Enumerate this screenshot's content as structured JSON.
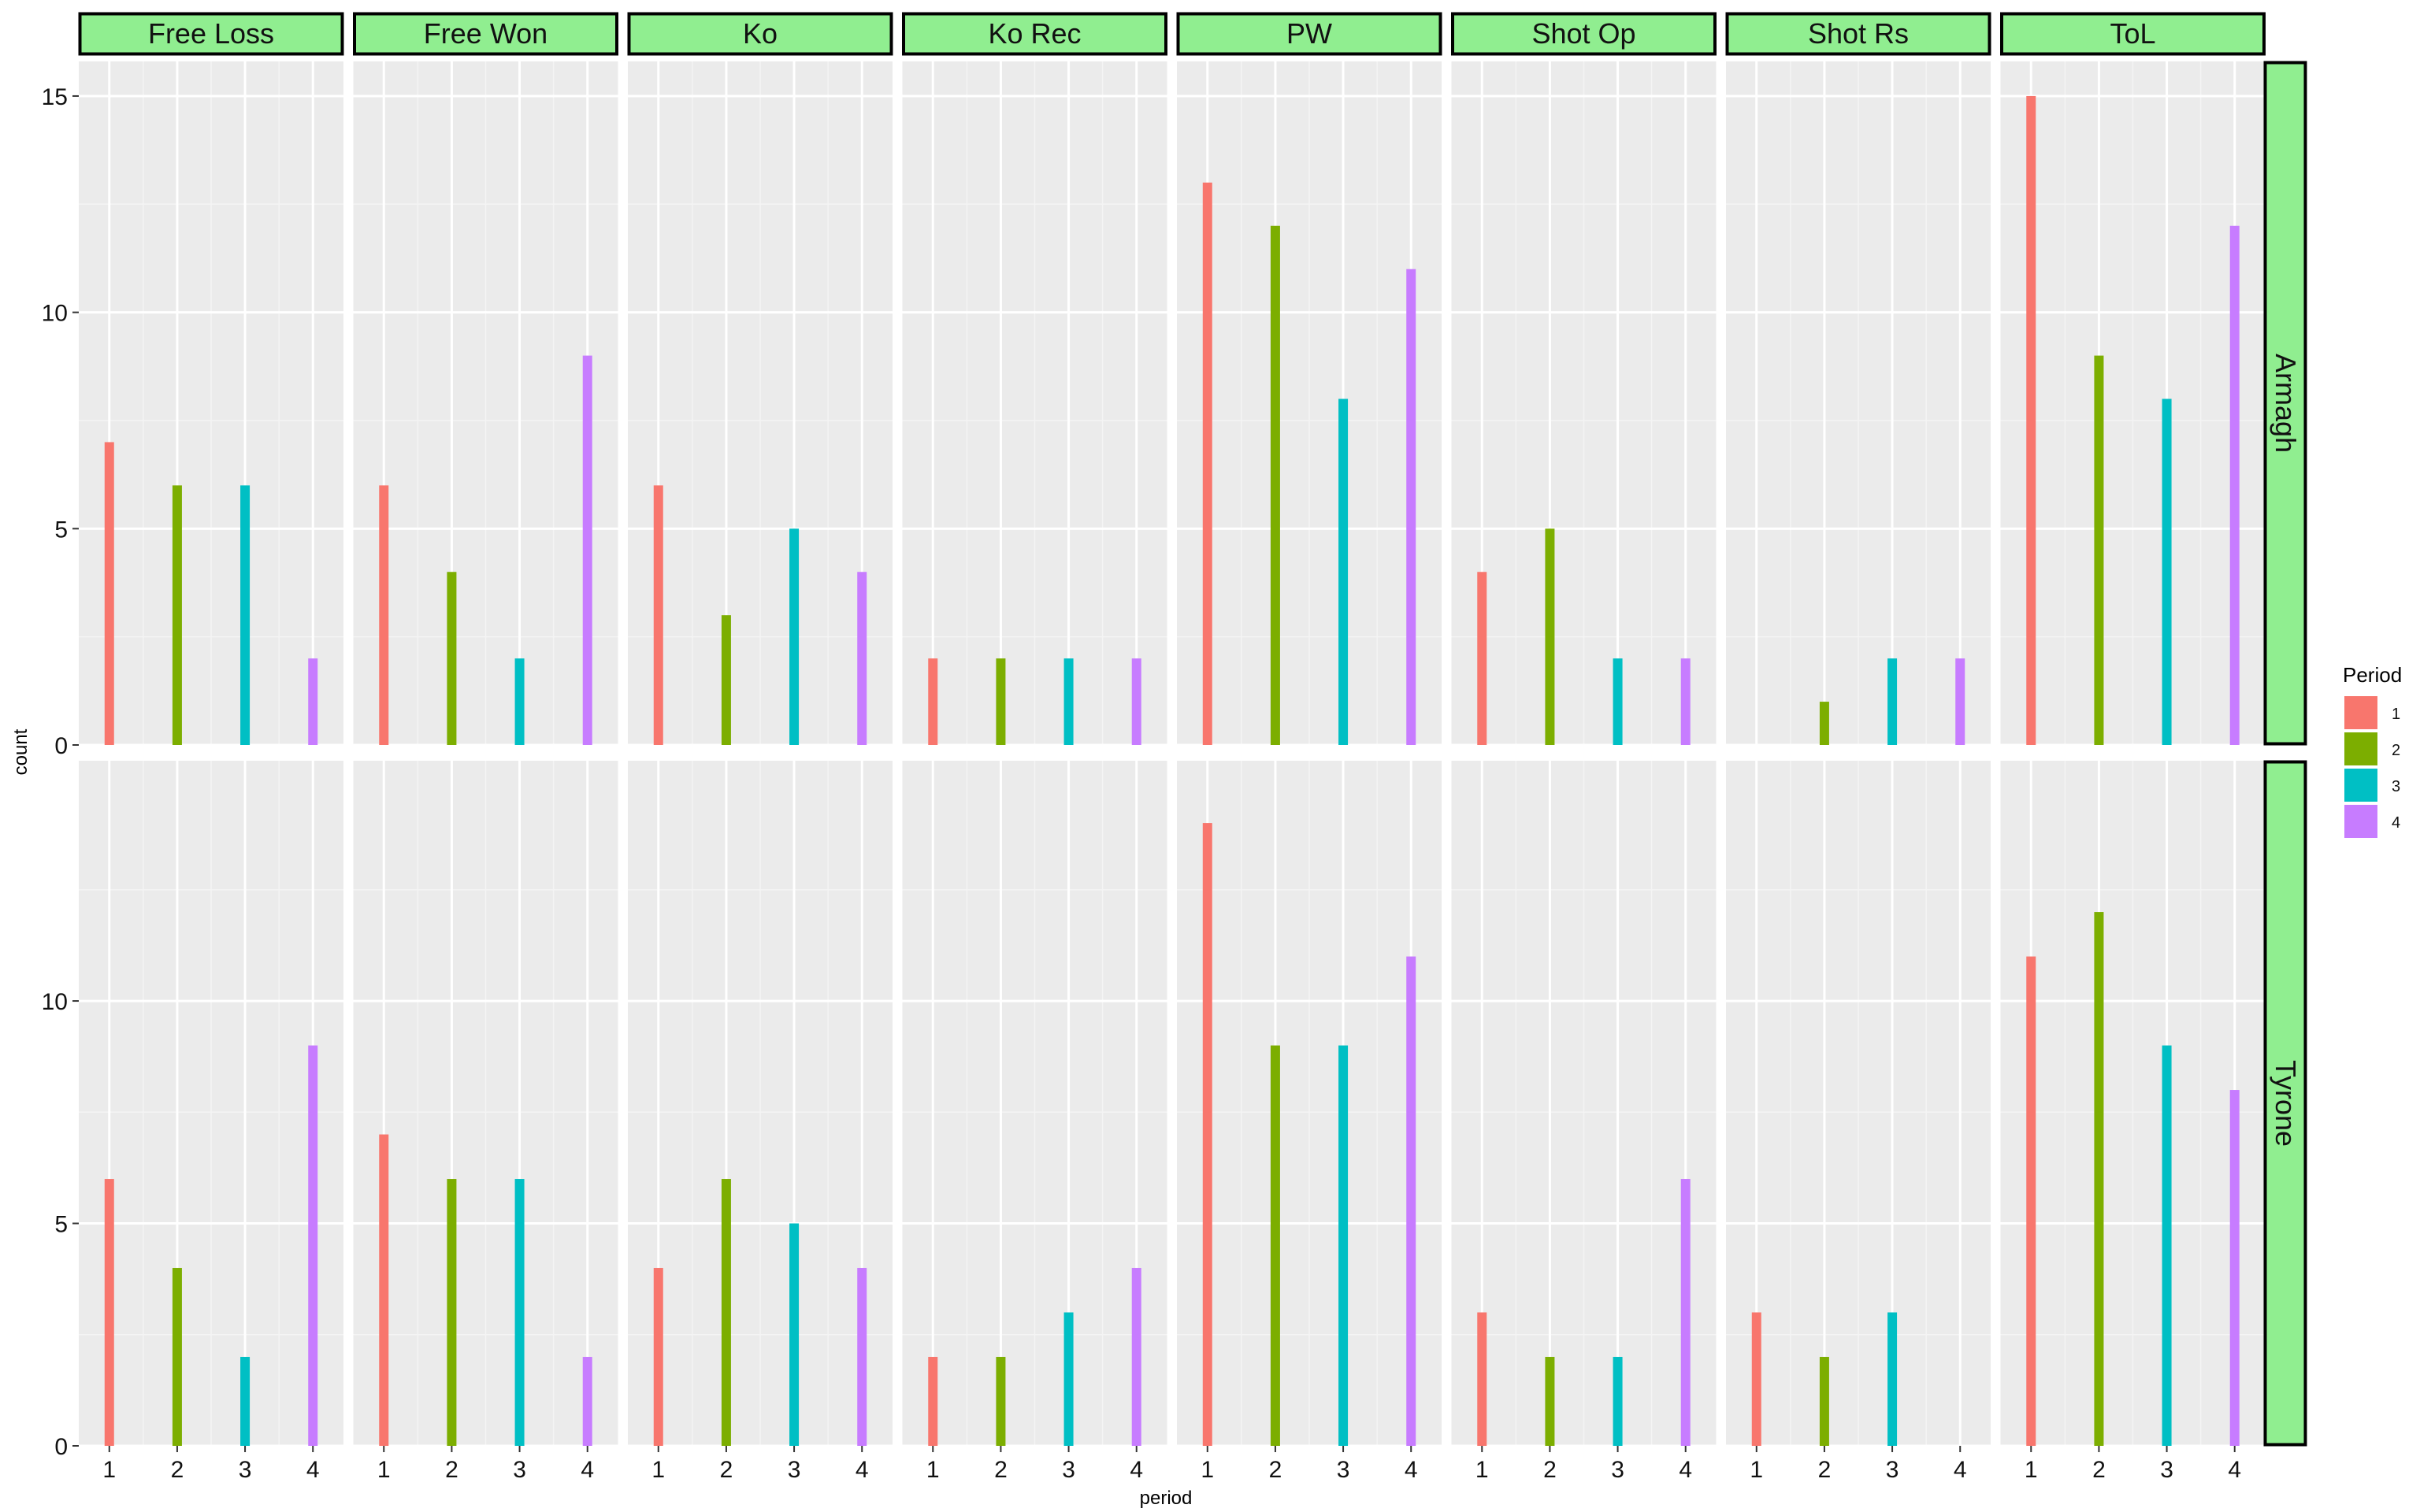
{
  "chart_data": {
    "type": "bar",
    "x_label": "period",
    "y_label": "count",
    "legend": {
      "title": "Period",
      "position": "right",
      "entries": [
        {
          "label": "1",
          "color": "#F8766D"
        },
        {
          "label": "2",
          "color": "#7CAE00"
        },
        {
          "label": "3",
          "color": "#00BFC4"
        },
        {
          "label": "4",
          "color": "#C77CFF"
        }
      ]
    },
    "facet_columns": [
      "Free Loss",
      "Free Won",
      "Ko",
      "Ko Rec",
      "PW",
      "Shot Op",
      "Shot Rs",
      "ToL"
    ],
    "facet_rows": [
      "Armagh",
      "Tyrone"
    ],
    "x_categories": [
      "1",
      "2",
      "3",
      "4"
    ],
    "panels": [
      {
        "row": "Armagh",
        "ylim": [
          0,
          15.8
        ],
        "y_ticks": [
          0,
          5,
          10,
          15
        ],
        "values": {
          "Free Loss": [
            7,
            6,
            6,
            2
          ],
          "Free Won": [
            6,
            4,
            2,
            9
          ],
          "Ko": [
            6,
            3,
            5,
            4
          ],
          "Ko Rec": [
            2,
            2,
            2,
            2
          ],
          "PW": [
            13,
            12,
            8,
            11
          ],
          "Shot Op": [
            4,
            5,
            2,
            2
          ],
          "Shot Rs": [
            0,
            1,
            2,
            2
          ],
          "ToL": [
            15,
            9,
            8,
            12
          ]
        }
      },
      {
        "row": "Tyrone",
        "ylim": [
          0,
          15.4
        ],
        "y_ticks": [
          0,
          5,
          10
        ],
        "values": {
          "Free Loss": [
            6,
            4,
            2,
            9
          ],
          "Free Won": [
            7,
            6,
            6,
            2
          ],
          "Ko": [
            4,
            6,
            5,
            4
          ],
          "Ko Rec": [
            2,
            2,
            3,
            4
          ],
          "PW": [
            14,
            9,
            9,
            11
          ],
          "Shot Op": [
            3,
            2,
            2,
            6
          ],
          "Shot Rs": [
            3,
            2,
            3,
            0
          ],
          "ToL": [
            11,
            12,
            9,
            8
          ]
        }
      }
    ],
    "colors": {
      "panel_background": "#EBEBEB",
      "grid_major": "#FFFFFF",
      "grid_minor": "#F4F4F4",
      "strip_fill": "#90EE90",
      "strip_border": "#000000"
    }
  }
}
